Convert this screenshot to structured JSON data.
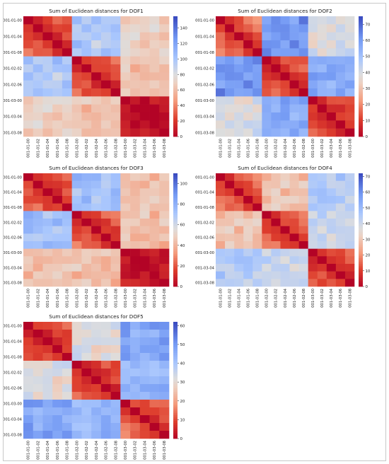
{
  "chart_data": [
    {
      "type": "heatmap",
      "title": "Sum of Euclidean distances for DOF1",
      "cmap": "coolwarm_r",
      "labels": [
        "001-01-00",
        "001-01-02",
        "001-01-04",
        "001-01-06",
        "001-01-08",
        "001-02-00",
        "001-02-02",
        "001-02-04",
        "001-02-06",
        "001-02-08",
        "001-03-00",
        "001-03-02",
        "001-03-04",
        "001-03-06",
        "001-03-08"
      ],
      "vmin": 0,
      "vmax": 155,
      "colorbar_ticks": [
        0,
        20,
        40,
        60,
        80,
        100,
        120,
        140
      ],
      "group_means": [
        [
          40,
          100,
          70
        ],
        [
          100,
          40,
          65
        ],
        [
          70,
          65,
          10
        ]
      ]
    },
    {
      "type": "heatmap",
      "title": "Sum of Euclidean distances for DOF2",
      "cmap": "coolwarm_r",
      "labels": [
        "001-01-00",
        "001-01-02",
        "001-01-04",
        "001-01-06",
        "001-01-08",
        "001-02-00",
        "001-02-02",
        "001-02-04",
        "001-02-06",
        "001-02-08",
        "001-03-00",
        "001-03-02",
        "001-03-04",
        "001-03-06",
        "001-03-08"
      ],
      "vmin": 0,
      "vmax": 75,
      "colorbar_ticks": [
        0,
        10,
        20,
        30,
        40,
        50,
        60,
        70
      ],
      "group_means": [
        [
          22,
          62,
          40
        ],
        [
          62,
          20,
          56
        ],
        [
          40,
          56,
          18
        ]
      ]
    },
    {
      "type": "heatmap",
      "title": "Sum of Euclidean distances for DOF3",
      "cmap": "coolwarm_r",
      "labels": [
        "001-01-00",
        "001-01-02",
        "001-01-04",
        "001-01-06",
        "001-01-08",
        "001-02-00",
        "001-02-02",
        "001-02-04",
        "001-02-06",
        "001-02-08",
        "001-03-00",
        "001-03-02",
        "001-03-04",
        "001-03-06",
        "001-03-08"
      ],
      "vmin": 0,
      "vmax": 110,
      "colorbar_ticks": [
        0,
        20,
        40,
        60,
        80,
        100
      ],
      "group_means": [
        [
          30,
          75,
          45
        ],
        [
          75,
          30,
          45
        ],
        [
          45,
          45,
          8
        ]
      ]
    },
    {
      "type": "heatmap",
      "title": "Sum of Euclidean distances for DOF4",
      "cmap": "coolwarm_r",
      "labels": [
        "001-01-00",
        "001-01-02",
        "001-01-04",
        "001-01-06",
        "001-01-08",
        "001-02-00",
        "001-02-02",
        "001-02-04",
        "001-02-06",
        "001-02-08",
        "001-03-00",
        "001-03-02",
        "001-03-04",
        "001-03-06",
        "001-03-08"
      ],
      "vmin": 0,
      "vmax": 72,
      "colorbar_ticks": [
        0,
        10,
        20,
        30,
        40,
        50,
        60,
        70
      ],
      "group_means": [
        [
          22,
          30,
          45
        ],
        [
          30,
          22,
          42
        ],
        [
          45,
          42,
          18
        ]
      ]
    },
    {
      "type": "heatmap",
      "title": "Sum of Euclidean distances for DOF5",
      "cmap": "coolwarm_r",
      "labels": [
        "001-01-00",
        "001-01-02",
        "001-01-04",
        "001-01-06",
        "001-01-08",
        "001-02-00",
        "001-02-02",
        "001-02-04",
        "001-02-06",
        "001-02-08",
        "001-03-00",
        "001-03-02",
        "001-03-04",
        "001-03-06",
        "001-03-08"
      ],
      "vmin": 0,
      "vmax": 62,
      "colorbar_ticks": [
        0,
        10,
        20,
        30,
        40,
        50,
        60
      ],
      "group_means": [
        [
          14,
          32,
          48
        ],
        [
          32,
          14,
          44
        ],
        [
          48,
          44,
          18
        ]
      ]
    }
  ]
}
